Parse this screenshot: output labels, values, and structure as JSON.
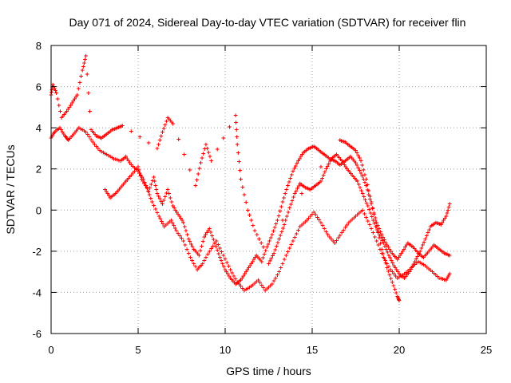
{
  "chart_data": {
    "type": "scatter",
    "title": "Day 071 of 2024, Sidereal Day-to-day VTEC variation (SDTVAR) for receiver flin",
    "xlabel": "GPS time / hours",
    "ylabel": "SDTVAR / TECUs",
    "xlim": [
      0,
      25
    ],
    "ylim": [
      -6,
      8
    ],
    "xticks": [
      "0",
      "5",
      "10",
      "15",
      "20",
      "25"
    ],
    "yticks": [
      "-6",
      "-4",
      "-2",
      "0",
      "2",
      "4",
      "6",
      "8"
    ],
    "grid": true,
    "marker": "+",
    "series": [
      {
        "name": "main",
        "color": "#ff0000",
        "x": [
          0.0,
          0.2,
          0.5,
          0.8,
          1.0,
          1.3,
          1.6,
          2.0,
          2.4,
          2.8,
          3.2,
          3.6,
          4.0,
          4.3,
          4.6,
          5.0,
          5.3,
          5.6,
          5.9,
          6.1,
          6.4,
          6.7,
          7.0,
          7.3,
          7.6,
          7.9,
          8.2,
          8.5,
          8.8,
          9.1,
          9.4,
          9.7,
          10.0,
          10.3,
          10.6,
          10.9,
          11.2,
          11.5,
          11.8,
          12.1,
          12.4,
          12.7,
          13.0,
          13.3,
          13.6,
          13.9,
          14.2,
          14.5,
          14.8,
          15.1,
          15.4,
          15.7,
          16.0,
          16.3,
          16.6,
          16.9,
          17.2,
          17.5,
          17.8,
          18.1,
          18.4,
          18.7,
          19.0,
          19.3,
          19.6,
          19.9,
          20.2,
          20.5,
          20.8,
          21.1,
          21.4,
          21.7,
          22.0,
          22.3,
          22.6,
          22.9
        ],
        "y": [
          3.5,
          3.8,
          4.0,
          3.6,
          3.4,
          3.7,
          4.0,
          3.8,
          3.3,
          2.9,
          2.7,
          2.5,
          2.4,
          2.6,
          2.2,
          1.9,
          1.5,
          0.9,
          1.6,
          0.8,
          0.3,
          1.0,
          0.2,
          -0.2,
          -0.6,
          -1.4,
          -1.9,
          -2.2,
          -1.3,
          -0.9,
          -1.6,
          -2.3,
          -2.9,
          -3.3,
          -3.6,
          -3.4,
          -3.0,
          -2.6,
          -2.2,
          -2.5,
          -1.8,
          -1.2,
          -0.5,
          0.4,
          1.2,
          1.9,
          2.4,
          2.8,
          3.0,
          3.1,
          2.9,
          2.7,
          2.5,
          2.4,
          2.2,
          2.4,
          2.6,
          2.3,
          1.8,
          1.2,
          0.3,
          -0.6,
          -1.2,
          -1.7,
          -2.1,
          -2.4,
          -2.0,
          -1.6,
          -1.8,
          -2.1,
          -2.3,
          -2.0,
          -1.7,
          -1.9,
          -2.1,
          -2.2
        ]
      },
      {
        "name": "upper",
        "color": "#ff0000",
        "x": [
          0.0,
          0.1,
          0.3,
          0.6,
          0.9,
          1.2,
          1.5,
          1.8,
          2.0,
          2.3,
          2.6,
          2.9,
          3.2,
          3.5,
          3.8,
          4.1,
          6.1,
          6.4,
          6.7,
          7.0,
          8.3,
          8.6,
          8.9,
          9.2,
          10.6,
          10.7,
          10.9,
          11.3,
          11.7,
          12.2,
          16.6,
          16.9,
          17.2,
          17.5,
          17.8,
          18.1,
          18.4,
          18.7,
          19.0,
          19.3,
          19.6,
          19.9,
          20.0
        ],
        "y": [
          5.6,
          6.1,
          5.7,
          4.5,
          4.8,
          5.2,
          5.6,
          6.8,
          7.5,
          3.9,
          3.6,
          3.5,
          3.7,
          3.9,
          4.0,
          4.1,
          3.0,
          3.8,
          4.5,
          4.2,
          1.2,
          2.3,
          3.2,
          2.4,
          4.6,
          3.2,
          1.5,
          0.0,
          -1.0,
          -1.8,
          3.4,
          3.3,
          3.1,
          2.9,
          2.4,
          1.5,
          0.4,
          -0.8,
          -1.9,
          -2.8,
          -3.5,
          -4.2,
          -4.4
        ]
      },
      {
        "name": "lower",
        "color": "#ff0000",
        "x": [
          3.1,
          3.4,
          3.7,
          4.0,
          4.3,
          4.6,
          5.0,
          5.2,
          5.5,
          5.8,
          6.2,
          6.5,
          6.9,
          7.2,
          7.6,
          8.0,
          8.4,
          8.7,
          9.1,
          9.5,
          9.9,
          10.3,
          10.7,
          11.1,
          11.5,
          11.9,
          12.3,
          12.7,
          13.1,
          13.5,
          13.9,
          14.3,
          14.7,
          15.1,
          15.5,
          15.9,
          16.3,
          16.7,
          17.1,
          17.5,
          17.9,
          18.3,
          18.7,
          19.1,
          19.5,
          19.9,
          20.3,
          20.7,
          21.1,
          21.5,
          21.9,
          22.3,
          22.7,
          22.9
        ],
        "y": [
          1.0,
          0.6,
          0.8,
          1.1,
          1.4,
          1.7,
          2.1,
          1.5,
          1.1,
          0.4,
          -0.3,
          -0.8,
          -0.5,
          -1.0,
          -1.5,
          -2.3,
          -2.9,
          -2.6,
          -2.0,
          -1.5,
          -2.2,
          -2.9,
          -3.5,
          -3.9,
          -3.7,
          -3.4,
          -3.9,
          -3.6,
          -3.0,
          -2.2,
          -1.5,
          -0.8,
          -0.5,
          -0.1,
          -0.6,
          -1.2,
          -1.6,
          -1.1,
          -0.6,
          -0.3,
          0.0,
          -0.7,
          -1.5,
          -2.3,
          -2.9,
          -3.3,
          -3.1,
          -2.8,
          -2.5,
          -2.7,
          -3.0,
          -3.3,
          -3.4,
          -3.1
        ]
      },
      {
        "name": "late",
        "color": "#ff0000",
        "x": [
          12.5,
          12.8,
          13.1,
          13.4,
          13.7,
          14.0,
          14.3,
          14.6,
          14.9,
          15.2,
          15.5,
          15.8,
          16.1,
          16.4,
          16.7,
          17.0,
          17.3,
          17.6,
          17.9,
          18.2,
          18.5,
          18.8,
          19.1,
          19.4,
          19.7,
          20.0,
          20.3,
          20.6,
          20.9,
          21.2,
          21.5,
          21.8,
          22.1,
          22.4,
          22.7,
          22.9
        ],
        "y": [
          -2.6,
          -2.1,
          -1.4,
          -0.7,
          0.1,
          0.8,
          1.3,
          1.1,
          1.0,
          1.2,
          1.4,
          2.0,
          2.5,
          2.7,
          2.4,
          2.0,
          1.7,
          1.4,
          0.8,
          0.2,
          -0.5,
          -1.1,
          -1.6,
          -2.2,
          -2.7,
          -3.1,
          -3.3,
          -3.0,
          -2.5,
          -2.0,
          -1.4,
          -0.8,
          -0.6,
          -0.7,
          -0.3,
          0.3
        ]
      }
    ]
  }
}
